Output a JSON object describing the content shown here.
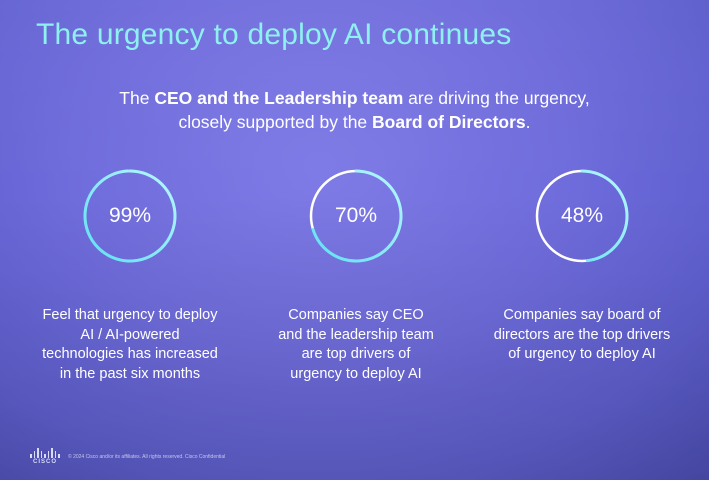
{
  "slide": {
    "title": "The urgency to deploy AI continues",
    "subtitle_line1": {
      "pre": "The ",
      "bold1": "CEO and the Leadership team",
      "post": " are driving the urgency,"
    },
    "subtitle_line2": {
      "pre": "closely supported by the ",
      "bold": "Board of Directors",
      "post": "."
    }
  },
  "stats": [
    {
      "value_label": "99%",
      "value": 99,
      "lines": [
        "Feel that urgency to deploy",
        "AI / AI-powered",
        "technologies has increased",
        "in the past six months"
      ]
    },
    {
      "value_label": "70%",
      "value": 70,
      "lines": [
        "Companies say CEO",
        "and the leadership team",
        "are top drivers of",
        "urgency to deploy AI"
      ]
    },
    {
      "value_label": "48%",
      "value": 48,
      "lines": [
        "Companies say board of",
        "directors are the top drivers",
        "of urgency to deploy AI"
      ]
    }
  ],
  "footer": {
    "logo_word": "CISCO",
    "copyright": "© 2024 Cisco and/or its affiliates. All rights reserved.   Cisco Confidential"
  },
  "colors": {
    "accent_cyan": "#8ff0f0",
    "ring_track": "#ffffff",
    "ring_fill_start": "#5fe0f2",
    "ring_fill_end": "#b8f7ff"
  }
}
